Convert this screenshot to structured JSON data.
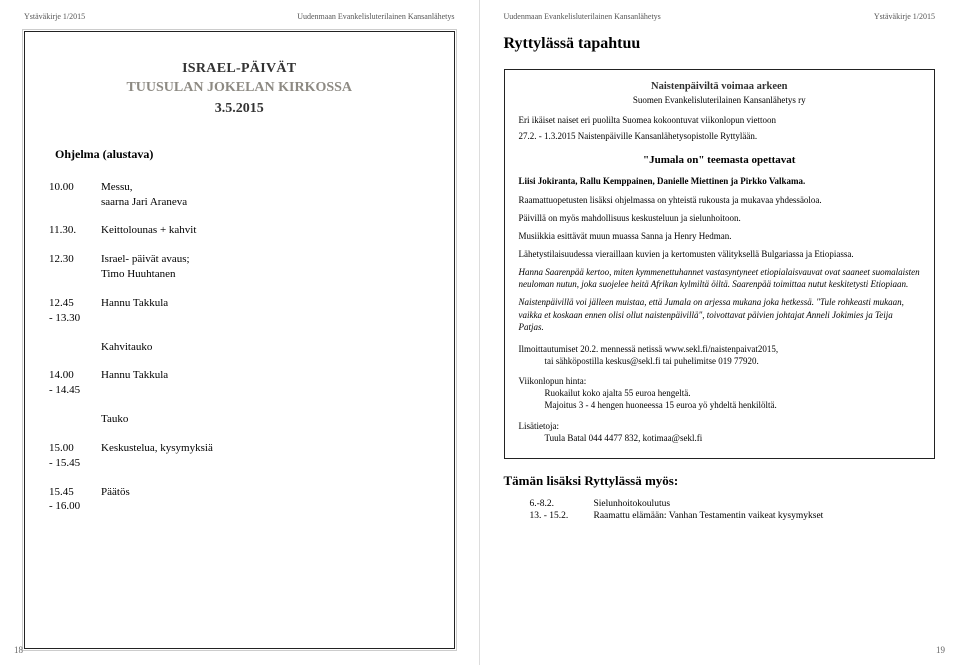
{
  "leftPage": {
    "headerLeft": "Ystäväkirje 1/2015",
    "headerRight": "Uudenmaan Evankelisluterilainen Kansanlähetys",
    "israel": {
      "title": "ISRAEL-PÄIVÄT",
      "subtitle": "TUUSULAN JOKELAN KIRKOSSA",
      "date": "3.5.2015"
    },
    "programTitle": "Ohjelma (alustava)",
    "program": [
      {
        "time1": "10.00",
        "time2": "",
        "desc1": "Messu,",
        "desc2": "saarna Jari Araneva"
      },
      {
        "time1": "11.30.",
        "time2": "",
        "desc1": "Keittolounas + kahvit",
        "desc2": ""
      },
      {
        "time1": "12.30",
        "time2": "",
        "desc1": "Israel- päivät avaus;",
        "desc2": "Timo Huuhtanen"
      },
      {
        "time1": "12.45",
        "time2": "- 13.30",
        "desc1": "Hannu Takkula",
        "desc2": ""
      },
      {
        "time1": "",
        "time2": "",
        "desc1": "Kahvitauko",
        "desc2": ""
      },
      {
        "time1": "14.00",
        "time2": "- 14.45",
        "desc1": "Hannu Takkula",
        "desc2": ""
      },
      {
        "time1": "",
        "time2": "",
        "desc1": "Tauko",
        "desc2": ""
      },
      {
        "time1": "15.00",
        "time2": "- 15.45",
        "desc1": "Keskustelua, kysymyksiä",
        "desc2": ""
      },
      {
        "time1": "15.45",
        "time2": "- 16.00",
        "desc1": "Päätös",
        "desc2": ""
      }
    ],
    "pageNumber": "18"
  },
  "rightPage": {
    "headerLeft": "Uudenmaan Evankelisluterilainen Kansanlähetys",
    "headerRight": "Ystäväkirje 1/2015",
    "mainTitle": "Ryttylässä tapahtuu",
    "npTitle": "Naistenpäiviltä voimaa arkeen",
    "org": "Suomen Evankelisluterilainen Kansanlähetys ry",
    "intro1": "Eri ikäiset naiset eri puolilta Suomea kokoontuvat viikonlopun viettoon",
    "intro2": "27.2. - 1.3.2015 Naistenpäiville Kansanlähetysopistolle Ryttylään.",
    "sectionTitle": "\"Jumala on\" teemasta opettavat",
    "teachers": "Liisi Jokiranta, Rallu Kemppainen, Danielle Miettinen ja Pirkko Valkama.",
    "p1": "Raamattuopetusten lisäksi ohjelmassa on yhteistä rukousta ja mukavaa yhdessäoloa.",
    "p2": "Päivillä on myös mahdollisuus keskusteluun ja sielunhoitoon.",
    "p3": "Musiikkia esittävät muun muassa Sanna ja Henry Hedman.",
    "p4": "Lähetystilaisuudessa vieraillaan kuvien ja kertomusten välityksellä Bulgariassa ja Etiopiassa.",
    "p5": "Hanna Saarenpää kertoo, miten kymmenettuhannet vastasyntyneet etiopialaisvauvat ovat saaneet suomalaisten neuloman nutun, joka suojelee heitä Afrikan kylmiltä öiltä. Saarenpää toimittaa nutut keskitetysti Etiopiaan.",
    "p6": "Naistenpäivillä voi jälleen muistaa, että Jumala on arjessa mukana joka hetkessä. \"Tule rohkeasti mukaan, vaikka et koskaan ennen olisi ollut naistenpäivillä\", toivottavat päivien johtajat Anneli Jokimies ja Teija Patjas.",
    "reg1": "Ilmoittautumiset 20.2. mennessä netissä www.sekl.fi/naistenpaivat2015,",
    "reg2": "tai sähköpostilla keskus@sekl.fi tai puhelimitse 019 77920.",
    "priceTitle": "Viikonlopun hinta:",
    "price1": "Ruokailut koko ajalta 55 euroa hengeltä.",
    "price2": "Majoitus 3 - 4 hengen huoneessa 15 euroa yö yhdeltä henkilöltä.",
    "moreTitle": "Lisätietoja:",
    "more1": "Tuula Batal 044 4477 832, kotimaa@sekl.fi",
    "alsoTitle": "Tämän lisäksi Ryttylässä myös:",
    "also": [
      {
        "date": "6.-8.2.",
        "desc": "Sielunhoitokoulutus"
      },
      {
        "date": "13. - 15.2.",
        "desc": "Raamattu elämään: Vanhan Testamentin vaikeat kysymykset"
      }
    ],
    "pageNumber": "19"
  }
}
